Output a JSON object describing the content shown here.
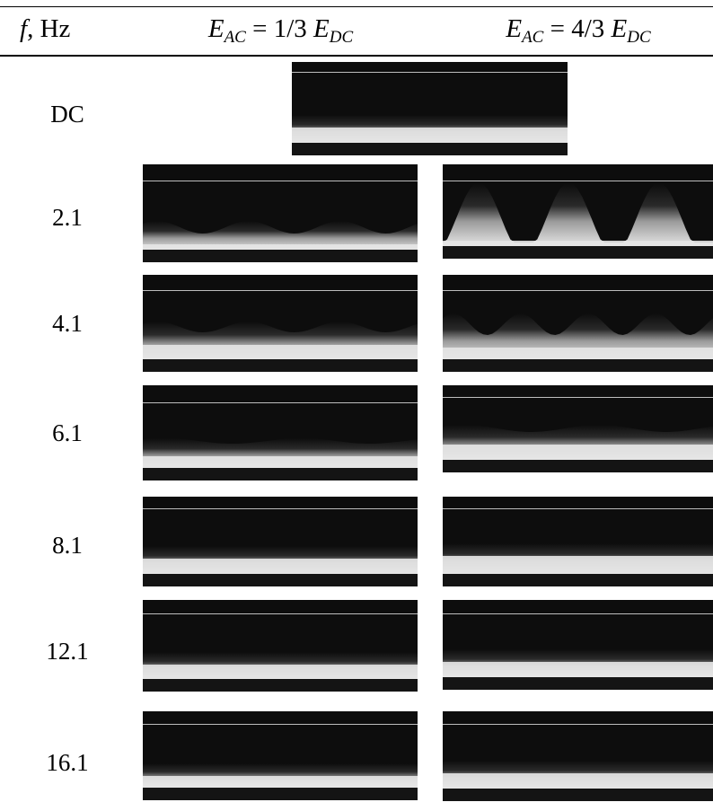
{
  "header": {
    "freq_symbol": "f",
    "freq_unit": ", Hz",
    "col1": {
      "E": "E",
      "sub_ac": "AC",
      "eq": " = 1/3 ",
      "E2": "E",
      "sub_dc": "DC"
    },
    "col2": {
      "E": "E",
      "sub_ac": "AC",
      "eq": " = 4/3 ",
      "E2": "E",
      "sub_dc": "DC"
    }
  },
  "rows": [
    {
      "label": "DC"
    },
    {
      "label": "2.1"
    },
    {
      "label": "4.1"
    },
    {
      "label": "6.1"
    },
    {
      "label": "8.1"
    },
    {
      "label": "12.1"
    },
    {
      "label": "16.1"
    }
  ],
  "colors": {
    "dark": "#0d0d0d",
    "light": "#e6e6e6",
    "top_line": "#bdbdbd"
  }
}
